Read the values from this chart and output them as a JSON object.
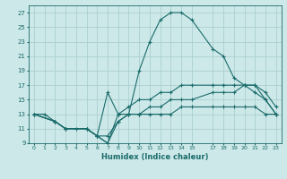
{
  "xlabel": "Humidex (Indice chaleur)",
  "bg_color": "#cde8e8",
  "grid_color": "#aacfcf",
  "line_color": "#1a6b6b",
  "xlim": [
    -0.5,
    23.5
  ],
  "ylim": [
    9,
    28
  ],
  "xticks": [
    0,
    1,
    2,
    3,
    4,
    5,
    6,
    7,
    8,
    9,
    10,
    11,
    12,
    13,
    14,
    15,
    17,
    18,
    19,
    20,
    21,
    22,
    23
  ],
  "yticks": [
    9,
    11,
    13,
    15,
    17,
    19,
    21,
    23,
    25,
    27
  ],
  "line1_x": [
    0,
    1,
    2,
    3,
    4,
    5,
    6,
    7,
    8,
    9,
    10,
    11,
    12,
    13,
    14,
    15,
    17,
    18,
    19,
    20,
    21,
    22,
    23
  ],
  "line1_y": [
    13,
    13,
    12,
    11,
    11,
    11,
    10,
    9,
    13,
    13,
    19,
    23,
    26,
    27,
    27,
    26,
    22,
    21,
    18,
    17,
    16,
    15,
    13
  ],
  "line2_x": [
    0,
    2,
    3,
    5,
    6,
    7,
    8,
    9,
    10,
    11,
    12,
    13,
    14,
    15,
    17,
    18,
    19,
    20,
    21,
    22,
    23
  ],
  "line2_y": [
    13,
    12,
    11,
    11,
    10,
    16,
    13,
    14,
    15,
    15,
    16,
    16,
    17,
    17,
    17,
    17,
    17,
    17,
    17,
    15,
    13
  ],
  "line3_x": [
    0,
    2,
    3,
    5,
    6,
    7,
    8,
    9,
    10,
    11,
    12,
    13,
    14,
    15,
    17,
    18,
    19,
    20,
    21,
    22,
    23
  ],
  "line3_y": [
    13,
    12,
    11,
    11,
    10,
    10,
    12,
    13,
    13,
    14,
    14,
    15,
    15,
    15,
    16,
    16,
    16,
    17,
    17,
    16,
    14
  ],
  "line4_x": [
    0,
    2,
    3,
    5,
    6,
    7,
    8,
    9,
    10,
    11,
    12,
    13,
    14,
    15,
    17,
    18,
    19,
    20,
    21,
    22,
    23
  ],
  "line4_y": [
    13,
    12,
    11,
    11,
    10,
    9,
    12,
    13,
    13,
    13,
    13,
    13,
    14,
    14,
    14,
    14,
    14,
    14,
    14,
    13,
    13
  ]
}
